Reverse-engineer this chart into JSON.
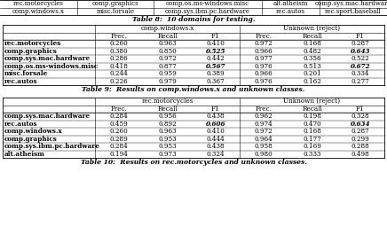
{
  "top_labels": [
    [
      "rec.motorcycles",
      "comp.graphics",
      "comp.os.ms-windows.misc",
      "alt.atheism",
      "comp.sys.mac.hardware"
    ],
    [
      "comp.windows.x",
      "misc.forsale",
      "comp.sys.ibm.pc.hardware",
      "rec.autos",
      "rec.sport.baseball"
    ]
  ],
  "table8_caption": "Table 8:  10 domains for testing.",
  "table9_caption": "Table 9:  Results on comp.windows.x and unknown classes.",
  "table10_caption": "Table 10:  Results on rec.motorcycles and unknown classes.",
  "table9": {
    "col_groups": [
      "comp.windows.x",
      "Unknown (reject)"
    ],
    "col_headers": [
      "Prec.",
      "Recall",
      "F1",
      "Prec.",
      "Recall",
      "F1"
    ],
    "rows": [
      [
        "rec.motorcycles",
        "0.260",
        "0.963",
        "0.410",
        "0.972",
        "0.168",
        "0.287"
      ],
      [
        "comp.graphics",
        "0.380",
        "0.850",
        "0.525",
        "0.966",
        "0.482",
        "0.643"
      ],
      [
        "comp.sys.mac.hardware",
        "0.286",
        "0.972",
        "0.442",
        "0.977",
        "0.356",
        "0.522"
      ],
      [
        "comp.os.ms-windows.misc",
        "0.418",
        "0.877",
        "0.567",
        "0.976",
        "0.513",
        "0.672"
      ],
      [
        "misc.forsale",
        "0.244",
        "0.959",
        "0.389",
        "0.966",
        "0.201",
        "0.334"
      ],
      [
        "rec.autos",
        "0.226",
        "0.979",
        "0.367",
        "0.976",
        "0.162",
        "0.277"
      ]
    ],
    "bold_f1_rows": [
      1,
      3
    ],
    "bold_f1_cols": [
      3,
      6
    ]
  },
  "table10": {
    "col_groups": [
      "rec.motorcycles",
      "Unknown (reject)"
    ],
    "col_headers": [
      "Prec.",
      "Recall",
      "F1",
      "Prec.",
      "Recall",
      "F1"
    ],
    "rows": [
      [
        "comp.sys.mac.hardware",
        "0.284",
        "0.956",
        "0.438",
        "0.962",
        "0.198",
        "0.328"
      ],
      [
        "rec.autos",
        "0.459",
        "0.892",
        "0.606",
        "0.974",
        "0.470",
        "0.634"
      ],
      [
        "comp.windows.x",
        "0.260",
        "0.963",
        "0.410",
        "0.972",
        "0.168",
        "0.287"
      ],
      [
        "comp.graphics",
        "0.289",
        "0.953",
        "0.444",
        "0.964",
        "0.177",
        "0.299"
      ],
      [
        "comp.sys.ibm.pc.hardware",
        "0.284",
        "0.953",
        "0.438",
        "0.958",
        "0.169",
        "0.288"
      ],
      [
        "alt.atheism",
        "0.194",
        "0.973",
        "0.324",
        "0.980",
        "0.333",
        "0.498"
      ]
    ],
    "bold_f1_rows": [
      1
    ],
    "bold_f1_cols": [
      3,
      6
    ]
  },
  "fs_label": 5.0,
  "fs_caption": 5.5,
  "fs_cell": 5.2
}
